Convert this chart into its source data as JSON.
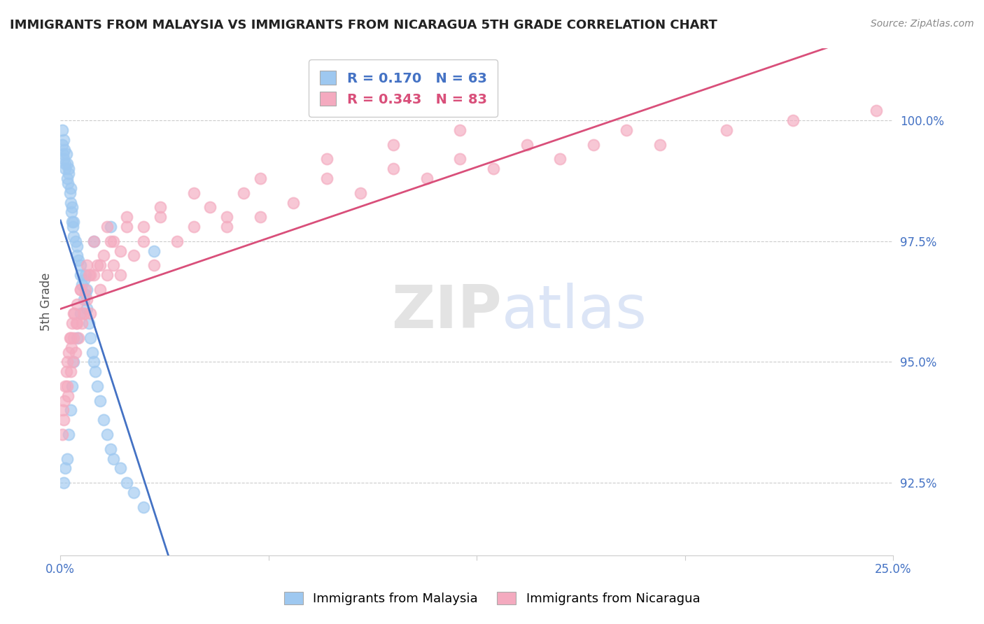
{
  "title": "IMMIGRANTS FROM MALAYSIA VS IMMIGRANTS FROM NICARAGUA 5TH GRADE CORRELATION CHART",
  "source": "Source: ZipAtlas.com",
  "ylabel": "5th Grade",
  "xlim": [
    0.0,
    25.0
  ],
  "ylim": [
    91.0,
    101.5
  ],
  "xticks": [
    0.0,
    6.25,
    12.5,
    18.75,
    25.0
  ],
  "xticklabels": [
    "0.0%",
    "",
    "",
    "",
    "25.0%"
  ],
  "yticks": [
    92.5,
    95.0,
    97.5,
    100.0
  ],
  "yticklabels": [
    "92.5%",
    "95.0%",
    "97.5%",
    "100.0%"
  ],
  "malaysia_color": "#9EC8F0",
  "nicaragua_color": "#F4AABF",
  "malaysia_line_color": "#4472C4",
  "nicaragua_line_color": "#D94F7A",
  "R_malaysia": 0.17,
  "N_malaysia": 63,
  "R_nicaragua": 0.343,
  "N_nicaragua": 83,
  "legend_label_malaysia": "Immigrants from Malaysia",
  "legend_label_nicaragua": "Immigrants from Nicaragua",
  "watermark_zip": "ZIP",
  "watermark_atlas": "atlas",
  "malaysia_x": [
    0.05,
    0.05,
    0.08,
    0.1,
    0.1,
    0.12,
    0.15,
    0.15,
    0.18,
    0.2,
    0.2,
    0.22,
    0.25,
    0.25,
    0.28,
    0.3,
    0.3,
    0.32,
    0.35,
    0.35,
    0.38,
    0.4,
    0.4,
    0.45,
    0.5,
    0.5,
    0.55,
    0.6,
    0.6,
    0.65,
    0.7,
    0.7,
    0.75,
    0.8,
    0.8,
    0.85,
    0.9,
    0.95,
    1.0,
    1.05,
    1.1,
    1.2,
    1.3,
    1.4,
    1.5,
    1.6,
    1.8,
    2.0,
    2.2,
    2.5,
    0.1,
    0.15,
    0.2,
    0.25,
    0.3,
    0.35,
    0.4,
    0.5,
    0.6,
    0.75,
    1.0,
    1.5,
    2.8
  ],
  "malaysia_y": [
    99.8,
    99.5,
    99.3,
    99.6,
    99.2,
    99.4,
    99.1,
    99.0,
    99.3,
    98.8,
    99.1,
    98.7,
    98.9,
    99.0,
    98.5,
    98.3,
    98.6,
    98.1,
    97.9,
    98.2,
    97.8,
    97.6,
    97.9,
    97.5,
    97.2,
    97.4,
    97.1,
    96.8,
    97.0,
    96.6,
    96.3,
    96.7,
    96.4,
    96.1,
    96.5,
    95.8,
    95.5,
    95.2,
    95.0,
    94.8,
    94.5,
    94.2,
    93.8,
    93.5,
    93.2,
    93.0,
    92.8,
    92.5,
    92.3,
    92.0,
    92.5,
    92.8,
    93.0,
    93.5,
    94.0,
    94.5,
    95.0,
    95.5,
    96.0,
    96.8,
    97.5,
    97.8,
    97.3
  ],
  "nicaragua_x": [
    0.05,
    0.08,
    0.1,
    0.12,
    0.15,
    0.18,
    0.2,
    0.22,
    0.25,
    0.28,
    0.3,
    0.32,
    0.35,
    0.38,
    0.4,
    0.42,
    0.45,
    0.48,
    0.5,
    0.55,
    0.6,
    0.65,
    0.7,
    0.75,
    0.8,
    0.85,
    0.9,
    1.0,
    1.1,
    1.2,
    1.3,
    1.4,
    1.5,
    1.6,
    1.8,
    2.0,
    2.2,
    2.5,
    2.8,
    3.0,
    3.5,
    4.0,
    4.5,
    5.0,
    5.5,
    6.0,
    7.0,
    8.0,
    9.0,
    10.0,
    11.0,
    12.0,
    13.0,
    14.0,
    15.0,
    16.0,
    17.0,
    18.0,
    20.0,
    22.0,
    0.2,
    0.3,
    0.4,
    0.5,
    0.6,
    0.7,
    0.8,
    0.9,
    1.0,
    1.2,
    1.4,
    1.6,
    1.8,
    2.0,
    2.5,
    3.0,
    4.0,
    5.0,
    6.0,
    8.0,
    10.0,
    12.0,
    24.5
  ],
  "nicaragua_y": [
    93.5,
    94.0,
    93.8,
    94.2,
    94.5,
    94.8,
    95.0,
    94.3,
    95.2,
    95.5,
    94.8,
    95.3,
    95.8,
    95.0,
    95.5,
    96.0,
    95.2,
    95.8,
    96.2,
    95.5,
    96.5,
    95.8,
    96.0,
    96.5,
    96.3,
    96.8,
    96.0,
    96.8,
    97.0,
    96.5,
    97.2,
    96.8,
    97.5,
    97.0,
    97.3,
    97.8,
    97.2,
    97.5,
    97.0,
    98.0,
    97.5,
    97.8,
    98.2,
    97.8,
    98.5,
    98.0,
    98.3,
    98.8,
    98.5,
    99.0,
    98.8,
    99.2,
    99.0,
    99.5,
    99.2,
    99.5,
    99.8,
    99.5,
    99.8,
    100.0,
    94.5,
    95.5,
    96.0,
    95.8,
    96.5,
    96.0,
    97.0,
    96.8,
    97.5,
    97.0,
    97.8,
    97.5,
    96.8,
    98.0,
    97.8,
    98.2,
    98.5,
    98.0,
    98.8,
    99.2,
    99.5,
    99.8,
    100.2
  ]
}
